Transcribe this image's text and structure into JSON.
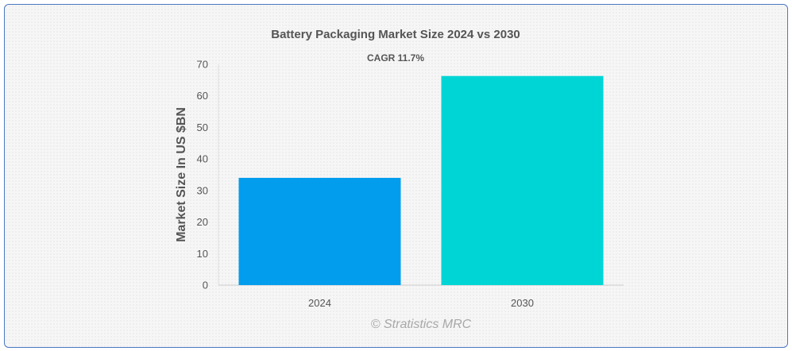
{
  "chart_data": {
    "type": "bar",
    "title": "Battery Packaging Market Size 2024 vs 2030",
    "subtitle": "CAGR 11.7%",
    "ylabel": "Market Size In US $BN",
    "xlabel": "",
    "categories": [
      "2024",
      "2030"
    ],
    "values": [
      34.0,
      66.3
    ],
    "colors": [
      "#039ded",
      "#00d5d6"
    ],
    "ylim": [
      0,
      70
    ],
    "yticks": [
      0,
      10,
      20,
      30,
      40,
      50,
      60,
      70
    ],
    "grid": false,
    "legend": "none"
  },
  "watermark": "© Stratistics MRC"
}
